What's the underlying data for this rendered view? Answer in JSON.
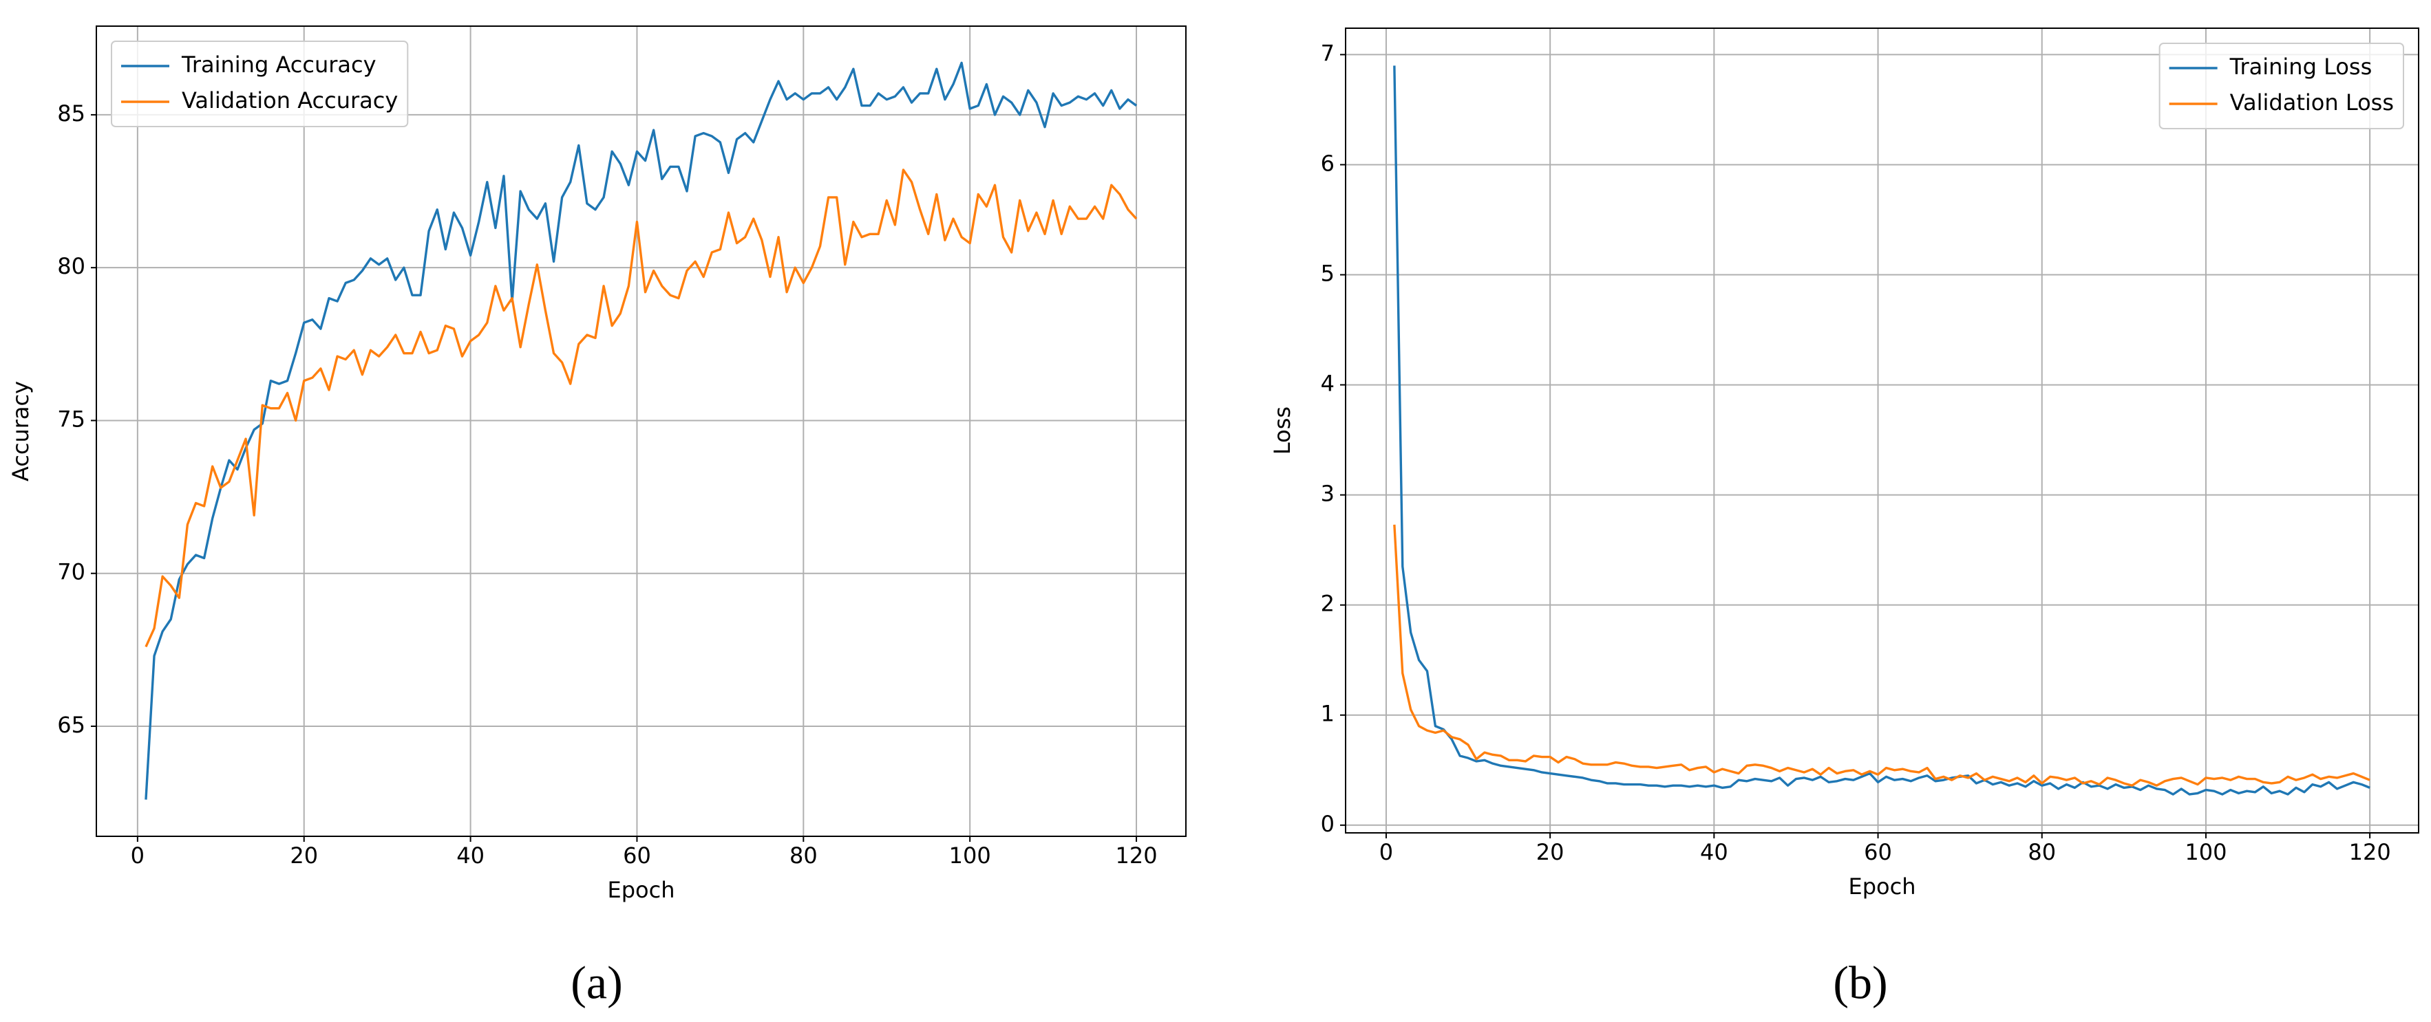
{
  "chart_data": [
    {
      "type": "line",
      "caption": "(a)",
      "xlabel": "Epoch",
      "ylabel": "Accuracy",
      "grid": true,
      "legend": "upper left",
      "xlim": [
        -4.95,
        125.95
      ],
      "xticks": [
        0,
        20,
        40,
        60,
        80,
        100,
        120
      ],
      "ylim": [
        61.4,
        87.9
      ],
      "yticks": [
        65,
        70,
        75,
        80,
        85
      ],
      "x": [
        1,
        2,
        3,
        4,
        5,
        6,
        7,
        8,
        9,
        10,
        11,
        12,
        13,
        14,
        15,
        16,
        17,
        18,
        19,
        20,
        21,
        22,
        23,
        24,
        25,
        26,
        27,
        28,
        29,
        30,
        31,
        32,
        33,
        34,
        35,
        36,
        37,
        38,
        39,
        40,
        41,
        42,
        43,
        44,
        45,
        46,
        47,
        48,
        49,
        50,
        51,
        52,
        53,
        54,
        55,
        56,
        57,
        58,
        59,
        60,
        61,
        62,
        63,
        64,
        65,
        66,
        67,
        68,
        69,
        70,
        71,
        72,
        73,
        74,
        75,
        76,
        77,
        78,
        79,
        80,
        81,
        82,
        83,
        84,
        85,
        86,
        87,
        88,
        89,
        90,
        91,
        92,
        93,
        94,
        95,
        96,
        97,
        98,
        99,
        100,
        101,
        102,
        103,
        104,
        105,
        106,
        107,
        108,
        109,
        110,
        111,
        112,
        113,
        114,
        115,
        116,
        117,
        118,
        119,
        120
      ],
      "series": [
        {
          "name": "Training Accuracy",
          "color": "#1f77b4",
          "values": [
            62.6,
            67.3,
            68.1,
            68.5,
            69.8,
            70.3,
            70.6,
            70.5,
            71.8,
            72.8,
            73.7,
            73.4,
            74.1,
            74.7,
            74.9,
            76.3,
            76.2,
            76.3,
            77.2,
            78.2,
            78.3,
            78.0,
            79.0,
            78.9,
            79.5,
            79.6,
            79.9,
            80.3,
            80.1,
            80.3,
            79.6,
            80.0,
            79.1,
            79.1,
            81.2,
            81.9,
            80.6,
            81.8,
            81.3,
            80.4,
            81.5,
            82.8,
            81.3,
            83.0,
            78.9,
            82.5,
            81.9,
            81.6,
            82.1,
            80.2,
            82.3,
            82.8,
            84.0,
            82.1,
            81.9,
            82.3,
            83.8,
            83.4,
            82.7,
            83.8,
            83.5,
            84.5,
            82.9,
            83.3,
            83.3,
            82.5,
            84.3,
            84.4,
            84.3,
            84.1,
            83.1,
            84.2,
            84.4,
            84.1,
            84.8,
            85.5,
            86.1,
            85.5,
            85.7,
            85.5,
            85.7,
            85.7,
            85.9,
            85.5,
            85.9,
            86.5,
            85.3,
            85.3,
            85.7,
            85.5,
            85.6,
            85.9,
            85.4,
            85.7,
            85.7,
            86.5,
            85.5,
            86.0,
            86.7,
            85.2,
            85.3,
            86.0,
            85.0,
            85.6,
            85.4,
            85.0,
            85.8,
            85.4,
            84.6,
            85.7,
            85.3,
            85.4,
            85.6,
            85.5,
            85.7,
            85.3,
            85.8,
            85.2,
            85.5,
            85.3
          ]
        },
        {
          "name": "Validation Accuracy",
          "color": "#ff7f0e",
          "values": [
            67.6,
            68.2,
            69.9,
            69.6,
            69.2,
            71.6,
            72.3,
            72.2,
            73.5,
            72.8,
            73.0,
            73.7,
            74.4,
            71.9,
            75.5,
            75.4,
            75.4,
            75.9,
            75.0,
            76.3,
            76.4,
            76.7,
            76.0,
            77.1,
            77.0,
            77.3,
            76.5,
            77.3,
            77.1,
            77.4,
            77.8,
            77.2,
            77.2,
            77.9,
            77.2,
            77.3,
            78.1,
            78.0,
            77.1,
            77.6,
            77.8,
            78.2,
            79.4,
            78.6,
            79.0,
            77.4,
            78.8,
            80.1,
            78.6,
            77.2,
            76.9,
            76.2,
            77.5,
            77.8,
            77.7,
            79.4,
            78.1,
            78.5,
            79.4,
            81.5,
            79.2,
            79.9,
            79.4,
            79.1,
            79.0,
            79.9,
            80.2,
            79.7,
            80.5,
            80.6,
            81.8,
            80.8,
            81.0,
            81.6,
            80.9,
            79.7,
            81.0,
            79.2,
            80.0,
            79.5,
            80.0,
            80.7,
            82.3,
            82.3,
            80.1,
            81.5,
            81.0,
            81.1,
            81.1,
            82.2,
            81.4,
            83.2,
            82.8,
            81.9,
            81.1,
            82.4,
            80.9,
            81.6,
            81.0,
            80.8,
            82.4,
            82.0,
            82.7,
            81.0,
            80.5,
            82.2,
            81.2,
            81.8,
            81.1,
            82.2,
            81.1,
            82.0,
            81.6,
            81.6,
            82.0,
            81.6,
            82.7,
            82.4,
            81.9,
            81.6
          ]
        }
      ]
    },
    {
      "type": "line",
      "caption": "(b)",
      "xlabel": "Epoch",
      "ylabel": "Loss",
      "grid": true,
      "legend": "upper right",
      "xlim": [
        -4.95,
        125.95
      ],
      "xticks": [
        0,
        20,
        40,
        60,
        80,
        100,
        120
      ],
      "ylim": [
        -0.07,
        7.24
      ],
      "yticks": [
        0,
        1,
        2,
        3,
        4,
        5,
        6,
        7
      ],
      "x": [
        1,
        2,
        3,
        4,
        5,
        6,
        7,
        8,
        9,
        10,
        11,
        12,
        13,
        14,
        15,
        16,
        17,
        18,
        19,
        20,
        21,
        22,
        23,
        24,
        25,
        26,
        27,
        28,
        29,
        30,
        31,
        32,
        33,
        34,
        35,
        36,
        37,
        38,
        39,
        40,
        41,
        42,
        43,
        44,
        45,
        46,
        47,
        48,
        49,
        50,
        51,
        52,
        53,
        54,
        55,
        56,
        57,
        58,
        59,
        60,
        61,
        62,
        63,
        64,
        65,
        66,
        67,
        68,
        69,
        70,
        71,
        72,
        73,
        74,
        75,
        76,
        77,
        78,
        79,
        80,
        81,
        82,
        83,
        84,
        85,
        86,
        87,
        88,
        89,
        90,
        91,
        92,
        93,
        94,
        95,
        96,
        97,
        98,
        99,
        100,
        101,
        102,
        103,
        104,
        105,
        106,
        107,
        108,
        109,
        110,
        111,
        112,
        113,
        114,
        115,
        116,
        117,
        118,
        119,
        120
      ],
      "series": [
        {
          "name": "Training Loss",
          "color": "#1f77b4",
          "values": [
            6.9,
            2.35,
            1.75,
            1.5,
            1.4,
            0.9,
            0.87,
            0.78,
            0.63,
            0.61,
            0.58,
            0.59,
            0.56,
            0.54,
            0.53,
            0.52,
            0.51,
            0.5,
            0.48,
            0.47,
            0.46,
            0.45,
            0.44,
            0.43,
            0.41,
            0.4,
            0.38,
            0.38,
            0.37,
            0.37,
            0.37,
            0.36,
            0.36,
            0.35,
            0.36,
            0.36,
            0.35,
            0.36,
            0.35,
            0.36,
            0.34,
            0.35,
            0.41,
            0.4,
            0.42,
            0.41,
            0.4,
            0.43,
            0.36,
            0.42,
            0.43,
            0.41,
            0.44,
            0.39,
            0.4,
            0.42,
            0.41,
            0.44,
            0.47,
            0.39,
            0.44,
            0.41,
            0.42,
            0.4,
            0.43,
            0.45,
            0.4,
            0.41,
            0.43,
            0.44,
            0.45,
            0.38,
            0.41,
            0.37,
            0.39,
            0.36,
            0.38,
            0.35,
            0.4,
            0.36,
            0.38,
            0.33,
            0.37,
            0.34,
            0.39,
            0.35,
            0.36,
            0.33,
            0.37,
            0.34,
            0.35,
            0.32,
            0.36,
            0.33,
            0.32,
            0.28,
            0.33,
            0.28,
            0.29,
            0.32,
            0.31,
            0.28,
            0.32,
            0.29,
            0.31,
            0.3,
            0.35,
            0.29,
            0.31,
            0.28,
            0.34,
            0.3,
            0.37,
            0.35,
            0.39,
            0.33,
            0.36,
            0.39,
            0.37,
            0.34
          ]
        },
        {
          "name": "Validation Loss",
          "color": "#ff7f0e",
          "values": [
            2.73,
            1.38,
            1.05,
            0.9,
            0.86,
            0.84,
            0.86,
            0.8,
            0.78,
            0.73,
            0.6,
            0.66,
            0.64,
            0.63,
            0.59,
            0.59,
            0.58,
            0.63,
            0.62,
            0.62,
            0.57,
            0.62,
            0.6,
            0.56,
            0.55,
            0.55,
            0.55,
            0.57,
            0.56,
            0.54,
            0.53,
            0.53,
            0.52,
            0.53,
            0.54,
            0.55,
            0.5,
            0.52,
            0.53,
            0.48,
            0.51,
            0.49,
            0.47,
            0.54,
            0.55,
            0.54,
            0.52,
            0.49,
            0.52,
            0.5,
            0.48,
            0.51,
            0.46,
            0.52,
            0.47,
            0.49,
            0.5,
            0.46,
            0.49,
            0.46,
            0.52,
            0.5,
            0.51,
            0.49,
            0.48,
            0.52,
            0.42,
            0.44,
            0.41,
            0.45,
            0.43,
            0.47,
            0.41,
            0.44,
            0.42,
            0.4,
            0.43,
            0.39,
            0.45,
            0.38,
            0.44,
            0.43,
            0.41,
            0.43,
            0.38,
            0.4,
            0.37,
            0.43,
            0.41,
            0.38,
            0.36,
            0.41,
            0.39,
            0.36,
            0.4,
            0.42,
            0.43,
            0.4,
            0.37,
            0.43,
            0.42,
            0.43,
            0.41,
            0.44,
            0.42,
            0.42,
            0.39,
            0.38,
            0.39,
            0.44,
            0.41,
            0.43,
            0.46,
            0.42,
            0.44,
            0.43,
            0.45,
            0.47,
            0.44,
            0.41
          ]
        }
      ]
    }
  ]
}
